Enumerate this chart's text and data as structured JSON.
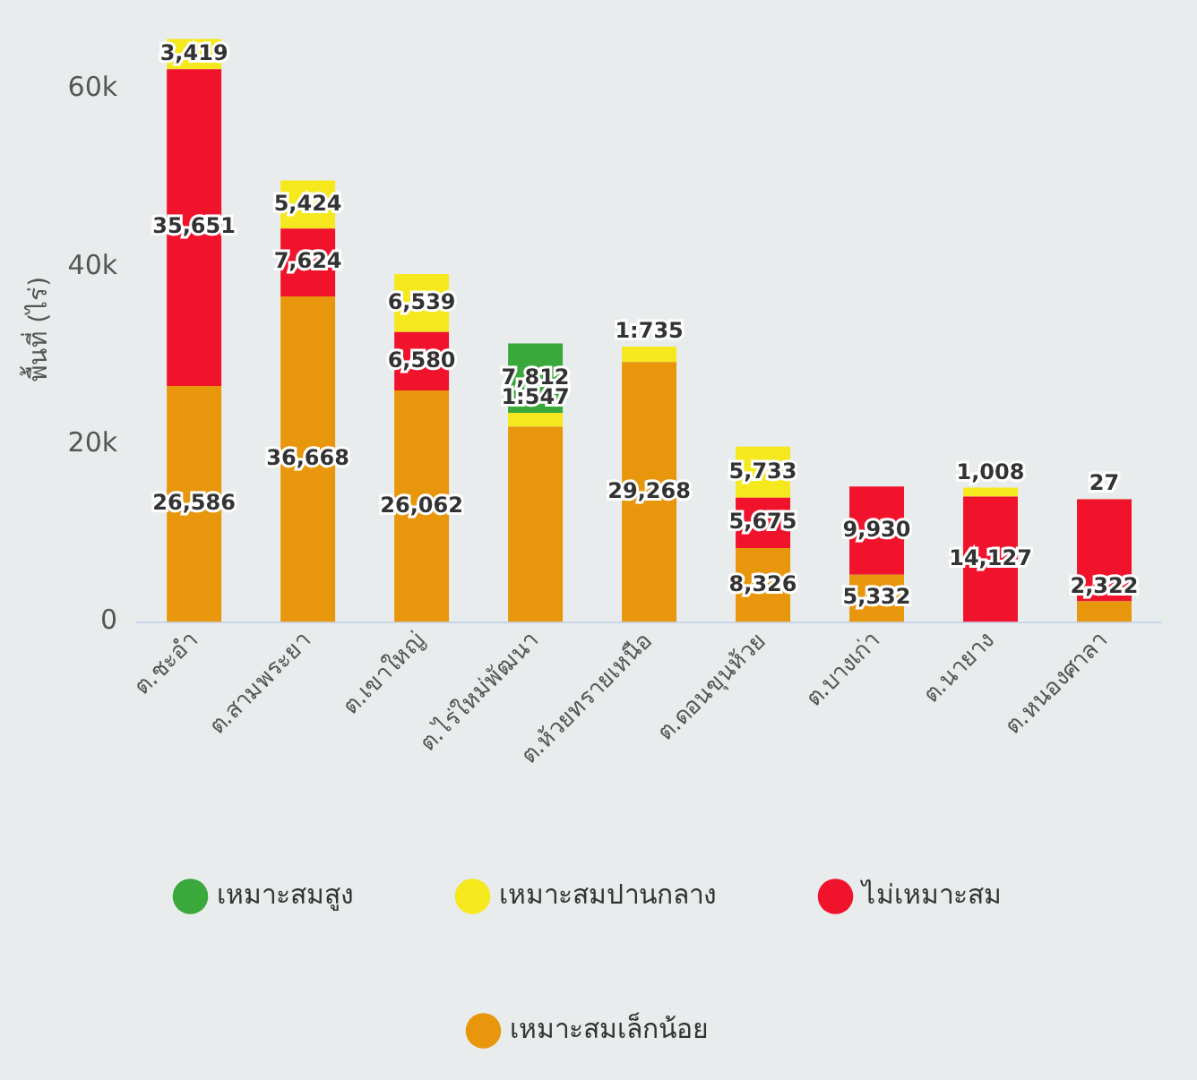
{
  "chart_data": {
    "type": "bar",
    "stacked": true,
    "ylabel": "พื้นที่ (ไร่)",
    "categories": [
      "ต.ชะอำ",
      "ต.สามพระยา",
      "ต.เขาใหญ่",
      "ต.ไร่ใหม่พัฒนา",
      "ต.ห้วยทรายเหนือ",
      "ต.ดอนขุนห้วย",
      "ต.บางเก่า",
      "ต.นายาง",
      "ต.หนองศาลา"
    ],
    "ylim": [
      0,
      66000
    ],
    "yticks": [
      0,
      {
        "value": 20000,
        "label": "20k"
      },
      {
        "value": 40000,
        "label": "40k"
      },
      {
        "value": 60000,
        "label": "60k"
      }
    ],
    "grid": false,
    "legend": "bottom",
    "series": [
      {
        "name": "เหมาะสมเล็กน้อย",
        "color": "#e8960c",
        "values": [
          26586,
          36668,
          26062,
          22000,
          29268,
          8326,
          5332,
          null,
          2322
        ],
        "value_labels": [
          "26,586",
          "36,668",
          "26,062",
          null,
          "29,268",
          "8,326",
          "5,332",
          null,
          "2,322"
        ]
      },
      {
        "name": "ไม่เหมาะสม",
        "color": "#f0132b",
        "values": [
          35651,
          7624,
          6580,
          null,
          null,
          5675,
          9930,
          14127,
          11500
        ],
        "value_labels": [
          "35,651",
          "7,624",
          "6,580",
          null,
          null,
          "5,675",
          "9,930",
          "14,127",
          null
        ]
      },
      {
        "name": "เหมาะสมปานกลาง",
        "color": "#f5e81c",
        "values": [
          3419,
          5424,
          6539,
          1547,
          1735,
          5733,
          null,
          1008,
          27
        ],
        "value_labels": [
          "3,419",
          "5,424",
          "6,539",
          "1:547",
          "1:735",
          "5,733",
          null,
          "1,008",
          "27"
        ]
      },
      {
        "name": "เหมาะสมสูง",
        "color": "#3aa83a",
        "values": [
          null,
          null,
          null,
          7812,
          null,
          null,
          null,
          null,
          null
        ],
        "value_labels": [
          null,
          null,
          null,
          "7,812",
          null,
          null,
          null,
          null,
          null
        ]
      }
    ]
  }
}
